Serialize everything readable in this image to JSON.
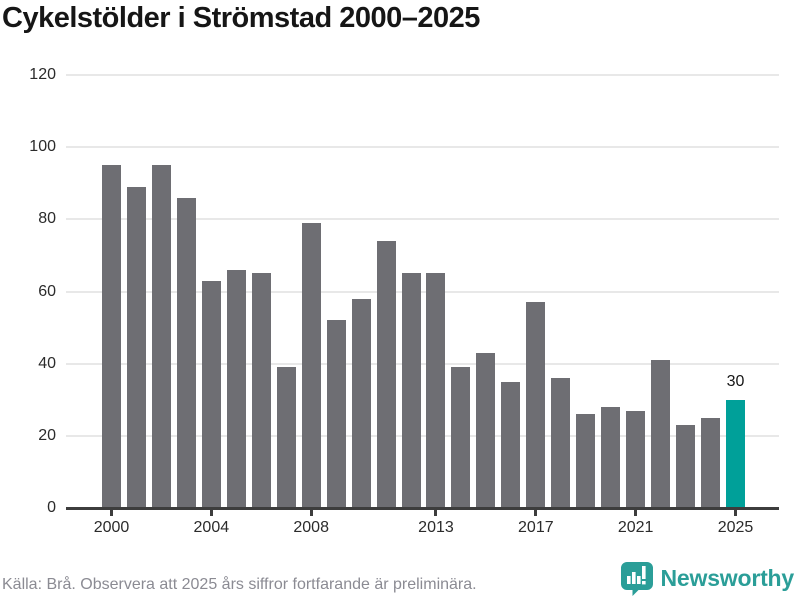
{
  "title": "Cykelstölder i Strömstad 2000–2025",
  "footer": {
    "source_text": "Källa: Brå. Observera att 2025 års siffror fortfarande är preliminära.",
    "brand": "Newsworthy",
    "brand_icon": "bar-chart-speech-bubble-icon"
  },
  "colors": {
    "bar": "#6e6e73",
    "highlight": "#00a099",
    "grid": "#e8e8e8",
    "axis": "#3d3d3d",
    "brand": "#2b9e98",
    "label": "#2b2b2b",
    "footer_text": "#8b8b93"
  },
  "chart_data": {
    "type": "bar",
    "title": "Cykelstölder i Strömstad 2000–2025",
    "categories": [
      2000,
      2001,
      2002,
      2003,
      2004,
      2005,
      2006,
      2007,
      2008,
      2009,
      2010,
      2011,
      2012,
      2013,
      2014,
      2015,
      2016,
      2017,
      2018,
      2019,
      2020,
      2021,
      2022,
      2023,
      2024,
      2025
    ],
    "values": [
      95,
      89,
      95,
      86,
      63,
      66,
      65,
      39,
      79,
      52,
      58,
      74,
      65,
      65,
      39,
      43,
      35,
      57,
      36,
      26,
      28,
      27,
      41,
      23,
      25,
      30
    ],
    "highlight_index": 25,
    "bar_label": {
      "index": 25,
      "text": "30"
    },
    "xlabel": "",
    "ylabel": "",
    "ylim": [
      0,
      120
    ],
    "yticks": [
      0,
      20,
      40,
      60,
      80,
      100,
      120
    ],
    "xticks": [
      2000,
      2004,
      2008,
      2013,
      2017,
      2021,
      2025
    ],
    "grid": true,
    "legend": "none"
  }
}
